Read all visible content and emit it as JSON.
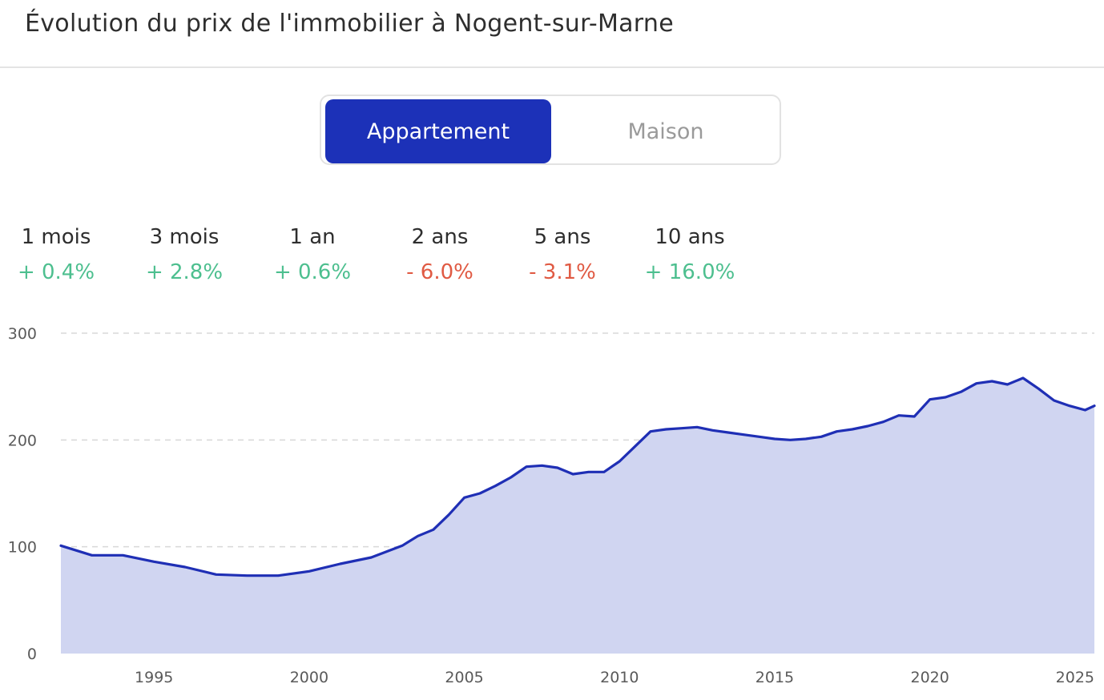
{
  "header": {
    "title": "Évolution du prix de l'immobilier à Nogent-sur-Marne"
  },
  "toggle": {
    "options": [
      {
        "label": "Appartement",
        "active": true
      },
      {
        "label": "Maison",
        "active": false
      }
    ]
  },
  "stats": [
    {
      "period": "1 mois",
      "change": "+ 0.4%",
      "trend": "up"
    },
    {
      "period": "3 mois",
      "change": "+ 2.8%",
      "trend": "up"
    },
    {
      "period": "1 an",
      "change": "+ 0.6%",
      "trend": "up"
    },
    {
      "period": "2 ans",
      "change": "- 6.0%",
      "trend": "down"
    },
    {
      "period": "5 ans",
      "change": "- 3.1%",
      "trend": "down"
    },
    {
      "period": "10 ans",
      "change": "+ 16.0%",
      "trend": "up"
    }
  ],
  "colors": {
    "accent": "#1c31b8",
    "line": "#1f2fb5",
    "area": "#d0d5f1",
    "positive": "#4dbf8f",
    "negative": "#e05a43",
    "grid": "#d8d8d8"
  },
  "chart_data": {
    "type": "area",
    "title": "",
    "xlabel": "",
    "ylabel": "",
    "xlim": [
      1992,
      2025.3
    ],
    "ylim": [
      0,
      300
    ],
    "x_ticks": [
      1995,
      2000,
      2005,
      2010,
      2015,
      2020,
      2025
    ],
    "y_ticks": [
      0,
      100,
      200,
      300
    ],
    "grid": "horizontal dashed",
    "legend": "none",
    "series": [
      {
        "x": [
          1992.0,
          1993.0,
          1994.0,
          1995.0,
          1996.0,
          1997.0,
          1998.0,
          1999.0,
          2000.0,
          2001.0,
          2002.0,
          2003.0,
          2003.5,
          2004.0,
          2004.5,
          2005.0,
          2005.5,
          2006.0,
          2006.5,
          2007.0,
          2007.5,
          2008.0,
          2008.5,
          2009.0,
          2009.5,
          2010.0,
          2010.5,
          2011.0,
          2011.5,
          2012.0,
          2012.5,
          2013.0,
          2013.5,
          2014.0,
          2014.5,
          2015.0,
          2015.5,
          2016.0,
          2016.5,
          2017.0,
          2017.5,
          2018.0,
          2018.5,
          2019.0,
          2019.5,
          2020.0,
          2020.5,
          2021.0,
          2021.5,
          2022.0,
          2022.5,
          2023.0,
          2023.5,
          2024.0,
          2024.5,
          2025.0,
          2025.3
        ],
        "y": [
          101,
          92,
          92,
          86,
          81,
          74,
          73,
          73,
          77,
          84,
          90,
          101,
          110,
          116,
          130,
          146,
          150,
          157,
          165,
          175,
          176,
          174,
          168,
          170,
          170,
          180,
          194,
          208,
          210,
          211,
          212,
          209,
          207,
          205,
          203,
          201,
          200,
          201,
          203,
          208,
          210,
          213,
          217,
          223,
          222,
          238,
          240,
          245,
          253,
          255,
          252,
          258,
          248,
          237,
          232,
          228,
          232
        ]
      }
    ]
  }
}
